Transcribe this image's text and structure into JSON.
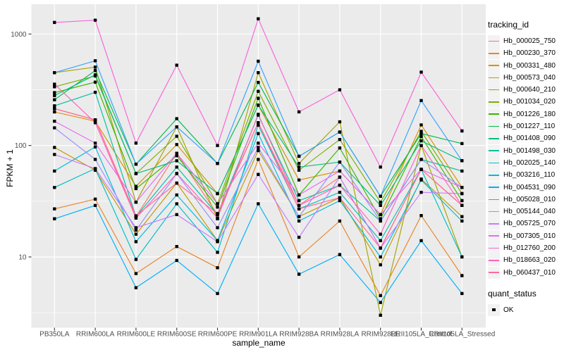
{
  "figure": {
    "y_axis_title": "FPKM + 1",
    "x_axis_title": "sample_name",
    "legend_title": "tracking_id",
    "quant_legend_title": "quant_status",
    "quant_ok_label": "OK"
  },
  "chart_data": {
    "type": "line",
    "title": "",
    "xlabel": "sample_name",
    "ylabel": "FPKM + 1",
    "y_scale": "log10",
    "ylim": [
      2.3,
      1750
    ],
    "y_ticks": [
      1000,
      100,
      10
    ],
    "y_tick_labels": [
      "1000",
      "100",
      "10"
    ],
    "grid": true,
    "legend_position": "right",
    "panel_bg": "#EBEBEB",
    "grid_color": "#FFFFFF",
    "tick_text_color": "#4D4D4D",
    "point_color": "#000000",
    "quant_status": "OK",
    "categories": [
      "PB350LA",
      "RRIM600LA",
      "RRIM600LE",
      "RRIM600SE",
      "RRIM600PE",
      "RRIM901LA",
      "RRIM928BA",
      "RRIM928LA",
      "RRIM928LE",
      "RRII105LA_Control",
      "RRII105LA_Stressed"
    ],
    "series": [
      {
        "name": "Hb_000025_750",
        "color": "#F8766D",
        "values": [
          214,
          170,
          23,
          85,
          24,
          160,
          29,
          52,
          12,
          61,
          29
        ]
      },
      {
        "name": "Hb_000230_370",
        "color": "#E88526",
        "values": [
          27,
          33,
          7.1,
          12.4,
          8,
          75,
          10,
          21,
          4.5,
          23.5,
          6.8
        ]
      },
      {
        "name": "Hb_000331_480",
        "color": "#D89000",
        "values": [
          200,
          165,
          43,
          102,
          37,
          230,
          49,
          59,
          24,
          153,
          42
        ]
      },
      {
        "name": "Hb_000573_040",
        "color": "#C09B00",
        "values": [
          96,
          60,
          16,
          46,
          14,
          90,
          23,
          34,
          8.5,
          50,
          23
        ]
      },
      {
        "name": "Hb_000640_210",
        "color": "#A3A500",
        "values": [
          450,
          505,
          31,
          147,
          22,
          450,
          69,
          163,
          3,
          100,
          10
        ]
      },
      {
        "name": "Hb_001034_020",
        "color": "#7CAE00",
        "values": [
          336,
          420,
          56,
          121,
          30,
          306,
          60,
          113,
          31,
          134,
          37
        ]
      },
      {
        "name": "Hb_001226_180",
        "color": "#39B600",
        "values": [
          298,
          370,
          41,
          81,
          28,
          265,
          36,
          95,
          22,
          120,
          32
        ]
      },
      {
        "name": "Hb_001227_110",
        "color": "#00BB4E",
        "values": [
          257,
          470,
          68,
          174,
          69,
          368,
          80,
          132,
          35,
          128,
          104
        ]
      },
      {
        "name": "Hb_001408_090",
        "color": "#00BF7D",
        "values": [
          280,
          430,
          56,
          73,
          37,
          230,
          64,
          71,
          29,
          110,
          73
        ]
      },
      {
        "name": "Hb_001498_030",
        "color": "#00C1A3",
        "values": [
          227,
          300,
          23,
          64,
          24,
          187,
          32,
          44,
          21,
          75,
          59
        ]
      },
      {
        "name": "Hb_002025_140",
        "color": "#00BFC4",
        "values": [
          42,
          62,
          9.5,
          30,
          11,
          152,
          27,
          38,
          14,
          61,
          10
        ]
      },
      {
        "name": "Hb_003216_110",
        "color": "#00BAE0",
        "values": [
          59,
          97,
          13.7,
          36,
          14,
          128,
          21,
          32,
          10,
          49,
          21
        ]
      },
      {
        "name": "Hb_004531_090",
        "color": "#00B0F6",
        "values": [
          22,
          29,
          5.3,
          9.3,
          4.7,
          30,
          7,
          10.5,
          3.9,
          14,
          4.7
        ]
      },
      {
        "name": "Hb_005028_010",
        "color": "#35A2FF",
        "values": [
          450,
          575,
          68,
          147,
          69,
          570,
          80,
          132,
          35,
          253,
          73
        ]
      },
      {
        "name": "Hb_005144_040",
        "color": "#9590FF",
        "values": [
          144,
          75,
          17.4,
          56,
          18.3,
          96,
          23,
          71,
          21,
          75,
          42
        ]
      },
      {
        "name": "Hb_005725_070",
        "color": "#C77CFF",
        "values": [
          83,
          62,
          18.3,
          24,
          13.7,
          55,
          15,
          52,
          12,
          38,
          37
        ]
      },
      {
        "name": "Hb_007305_010",
        "color": "#E76BF3",
        "values": [
          165,
          105,
          31,
          85,
          30,
          105,
          36,
          59,
          24,
          61,
          42
        ]
      },
      {
        "name": "Hb_012760_200",
        "color": "#FA62DB",
        "values": [
          1270,
          1330,
          105,
          525,
          100,
          1370,
          200,
          316,
          64,
          455,
          135
        ]
      },
      {
        "name": "Hb_018663_020",
        "color": "#FF62BC",
        "values": [
          355,
          160,
          22.3,
          56,
          22.4,
          190,
          29,
          44,
          16,
          100,
          29
        ]
      },
      {
        "name": "Hb_060437_010",
        "color": "#FF6A98",
        "values": [
          214,
          170,
          23.4,
          46,
          24.5,
          160,
          27,
          34,
          12,
          61,
          29
        ]
      }
    ]
  }
}
